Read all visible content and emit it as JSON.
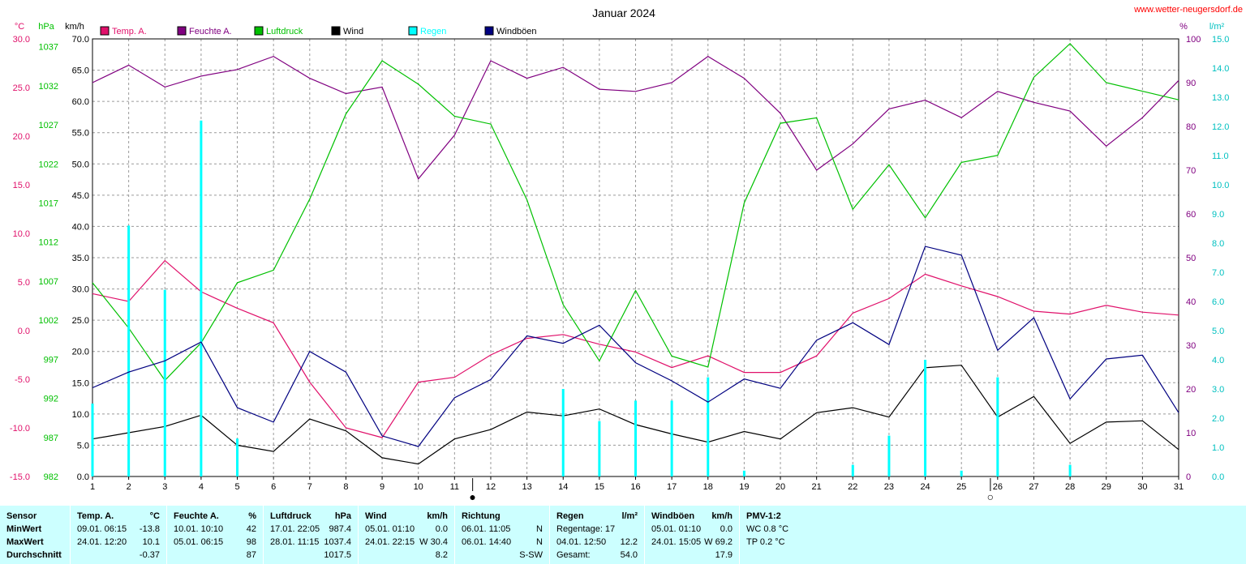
{
  "chart_data": {
    "type": "line",
    "title": "Januar 2024",
    "x_ticks": [
      1,
      2,
      3,
      4,
      5,
      6,
      7,
      8,
      9,
      10,
      11,
      12,
      13,
      14,
      15,
      16,
      17,
      18,
      19,
      20,
      21,
      22,
      23,
      24,
      25,
      26,
      27,
      28,
      29,
      30,
      31
    ],
    "axes": {
      "temp": {
        "unit": "°C",
        "ticks": [
          "30.0",
          "25.0",
          "20.0",
          "15.0",
          "10.0",
          "5.0",
          "0.0",
          "-5.0",
          "-10.0",
          "-15.0"
        ],
        "range": [
          -15,
          30
        ],
        "color": "#e0106a"
      },
      "pressure": {
        "unit": "hPa",
        "ticks": [
          "1037",
          "1032",
          "1027",
          "1022",
          "1017",
          "1012",
          "1007",
          "1002",
          "997",
          "992",
          "987",
          "982"
        ],
        "range": [
          982,
          1038
        ],
        "color": "#00c000"
      },
      "wind": {
        "unit": "km/h",
        "ticks": [
          "70.0",
          "65.0",
          "60.0",
          "55.0",
          "50.0",
          "45.0",
          "40.0",
          "35.0",
          "30.0",
          "25.0",
          "20.0",
          "15.0",
          "10.0",
          "5.0",
          "0.0"
        ],
        "range": [
          0,
          70
        ],
        "color": "#000000"
      },
      "humidity": {
        "unit": "%",
        "ticks": [
          "100",
          "90",
          "80",
          "70",
          "60",
          "50",
          "40",
          "30",
          "20",
          "10",
          "0"
        ],
        "range": [
          0,
          100
        ],
        "color": "#800080"
      },
      "rain": {
        "unit": "l/m²",
        "ticks": [
          "15.0",
          "14.0",
          "13.0",
          "12.0",
          "11.0",
          "10.0",
          "9.0",
          "8.0",
          "7.0",
          "6.0",
          "5.0",
          "4.0",
          "3.0",
          "2.0",
          "1.0",
          "0.0"
        ],
        "range": [
          0,
          15
        ],
        "color": "#00c0c0"
      }
    },
    "series": [
      {
        "name": "Temp. A.",
        "color": "#e0106a",
        "axis": "temp",
        "values": [
          3.8,
          3.0,
          7.2,
          4.0,
          2.3,
          0.8,
          -5.3,
          -10.0,
          -11.0,
          -5.3,
          -4.8,
          -2.5,
          -0.8,
          -0.4,
          -1.4,
          -2.2,
          -3.8,
          -2.6,
          -4.3,
          -4.3,
          -2.6,
          1.8,
          3.3,
          5.8,
          4.6,
          3.5,
          2.0,
          1.7,
          2.6,
          1.9,
          1.6
        ]
      },
      {
        "name": "Feuchte A.",
        "color": "#800080",
        "axis": "humidity",
        "values": [
          90,
          94,
          89,
          91.5,
          93,
          96,
          91,
          87.5,
          89,
          68,
          78,
          95,
          91,
          93.5,
          88.5,
          88,
          90,
          96,
          91,
          83,
          70,
          76,
          84,
          86,
          82,
          88,
          85.5,
          83.5,
          75.5,
          82,
          90.5
        ]
      },
      {
        "name": "Luftdruck",
        "color": "#00c000",
        "axis": "pressure",
        "values": [
          1006.8,
          1001.0,
          994.3,
          999.1,
          1006.8,
          1008.4,
          1017.5,
          1028.4,
          1035.2,
          1032.2,
          1028.1,
          1027.1,
          1017.4,
          1004.0,
          996.8,
          1005.8,
          997.4,
          996.0,
          1017.0,
          1027.2,
          1027.9,
          1016.2,
          1021.9,
          1015.1,
          1022.2,
          1023.1,
          1033.1,
          1037.4,
          1032.4,
          1031.3,
          1030.2
        ]
      },
      {
        "name": "Wind",
        "color": "#000000",
        "axis": "wind",
        "values": [
          6.0,
          7.0,
          8.0,
          9.8,
          5.0,
          4.0,
          9.2,
          7.3,
          3.0,
          2.0,
          6.0,
          7.5,
          10.3,
          9.7,
          10.8,
          8.3,
          6.8,
          5.5,
          7.2,
          6.0,
          10.2,
          11.0,
          9.5,
          17.4,
          17.8,
          9.5,
          12.8,
          5.3,
          8.7,
          8.9,
          4.3
        ]
      },
      {
        "name": "Regen",
        "color": "#00ffff",
        "axis": "rain",
        "bars": true,
        "values": [
          2.5,
          8.6,
          6.4,
          12.2,
          1.3,
          0,
          0,
          0,
          0,
          0,
          0,
          0,
          0,
          3.0,
          1.9,
          2.6,
          2.6,
          3.4,
          0.2,
          0,
          0,
          0.4,
          1.4,
          4.0,
          0.2,
          3.4,
          0,
          0.4,
          0,
          0,
          0
        ]
      },
      {
        "name": "Windböen",
        "color": "#000080",
        "axis": "wind",
        "values": [
          14.2,
          16.7,
          18.5,
          21.5,
          11.0,
          8.7,
          20.0,
          16.7,
          6.5,
          4.8,
          12.6,
          15.5,
          22.5,
          21.3,
          24.2,
          18.2,
          15.3,
          11.9,
          15.6,
          14.1,
          21.8,
          24.6,
          21.1,
          36.8,
          35.4,
          20.2,
          25.4,
          12.4,
          18.8,
          19.4,
          10.2
        ]
      }
    ],
    "markers": [
      {
        "day": 11.5,
        "symbol": "●"
      },
      {
        "day": 25.8,
        "symbol": "○"
      }
    ],
    "grid": true,
    "legend": "top"
  },
  "header": {
    "title": "Januar 2024",
    "site": "www.wetter-neugersdorf.de",
    "unit_temp": "°C",
    "unit_pressure": "hPa",
    "unit_wind": "km/h",
    "unit_humidity": "%",
    "unit_rain": "l/m²"
  },
  "table": {
    "row_labels": [
      "Sensor",
      "MinWert",
      "MaxWert",
      "Durchschnitt"
    ],
    "sections": [
      {
        "title": "Temp. A.",
        "unit": "°C",
        "rows": [
          {
            "time": "09.01.  06:15",
            "value": "-13.8"
          },
          {
            "time": "24.01.  12:20",
            "value": "10.1"
          },
          {
            "time": "",
            "value": "-0.37"
          }
        ]
      },
      {
        "title": "Feuchte A.",
        "unit": "%",
        "rows": [
          {
            "time": "10.01.  10:10",
            "value": "42"
          },
          {
            "time": "05.01.  06:15",
            "value": "98"
          },
          {
            "time": "",
            "value": "87"
          }
        ]
      },
      {
        "title": "Luftdruck",
        "unit": "hPa",
        "rows": [
          {
            "time": "17.01.  22:05",
            "value": "987.4"
          },
          {
            "time": "28.01.  11:15",
            "value": "1037.4"
          },
          {
            "time": "",
            "value": "1017.5"
          }
        ]
      },
      {
        "title": "Wind",
        "unit": "km/h",
        "rows": [
          {
            "time": "05.01.  01:10",
            "value": "0.0"
          },
          {
            "time": "24.01.  22:15",
            "value": "W 30.4"
          },
          {
            "time": "",
            "value": "8.2"
          }
        ]
      },
      {
        "title": "Richtung",
        "unit": "",
        "rows": [
          {
            "time": "06.01.  11:05",
            "value": "N"
          },
          {
            "time": "06.01.  14:40",
            "value": "N"
          },
          {
            "time": "",
            "value": "S-SW"
          }
        ]
      },
      {
        "title": "Regen",
        "unit": "l/m²",
        "rows": [
          {
            "time": "Regentage: 17",
            "value": ""
          },
          {
            "time": "04.01.  12:50",
            "value": "12.2"
          },
          {
            "time": "Gesamt:",
            "value": "54.0"
          }
        ]
      },
      {
        "title": "Windböen",
        "unit": "km/h",
        "rows": [
          {
            "time": "05.01.  01:10",
            "value": "0.0"
          },
          {
            "time": "24.01.  15:05",
            "value": "W 69.2"
          },
          {
            "time": "",
            "value": "17.9"
          }
        ]
      },
      {
        "title": "PMV-1:2",
        "unit": "",
        "rows": [
          {
            "time": "WC 0.8 °C",
            "value": ""
          },
          {
            "time": "TP 0.2 °C",
            "value": ""
          },
          {
            "time": "",
            "value": ""
          }
        ]
      }
    ]
  }
}
